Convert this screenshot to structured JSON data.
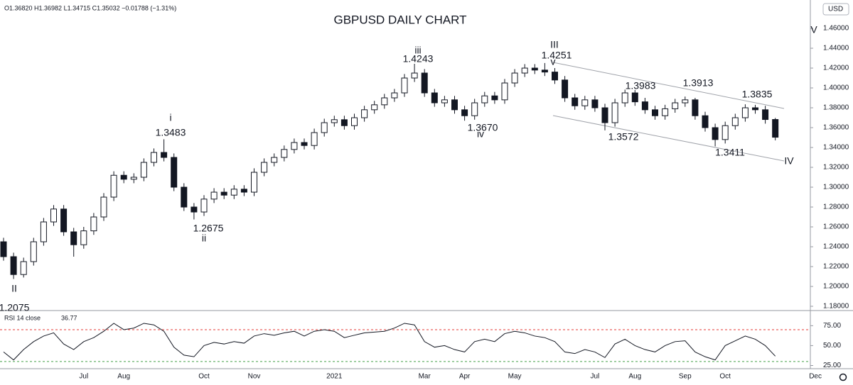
{
  "chart_data": {
    "type": "candlestick",
    "title": "GBPUSD DAILY CHART",
    "header": "O1.36820 H1.36982 L1.34715 C1.35032 −0.01788 (−1.31%)",
    "currency": "USD",
    "categories": [
      null,
      null,
      null,
      null,
      null,
      null,
      null,
      null,
      "Jul",
      null,
      null,
      null,
      "Aug",
      null,
      null,
      null,
      null,
      null,
      null,
      null,
      "Oct",
      null,
      null,
      null,
      null,
      "Nov",
      null,
      null,
      null,
      null,
      null,
      null,
      null,
      "2021",
      null,
      null,
      null,
      null,
      null,
      null,
      null,
      null,
      "Mar",
      null,
      null,
      null,
      "Apr",
      null,
      null,
      null,
      null,
      "May",
      null,
      null,
      null,
      null,
      null,
      null,
      null,
      "Jul",
      null,
      null,
      null,
      "Aug",
      null,
      null,
      null,
      null,
      "Sep",
      null,
      null,
      null,
      "Oct",
      null,
      null,
      null,
      null,
      null,
      null,
      null,
      null,
      "Dec"
    ],
    "color": "#131722",
    "open": [
      1.245,
      1.23,
      1.212,
      1.225,
      1.245,
      1.265,
      1.278,
      1.255,
      1.242,
      1.256,
      1.27,
      1.29,
      1.312,
      1.308,
      1.31,
      1.325,
      1.335,
      1.33,
      1.3,
      1.28,
      1.275,
      1.288,
      1.295,
      1.292,
      1.298,
      1.295,
      1.315,
      1.325,
      1.33,
      1.338,
      1.345,
      1.342,
      1.355,
      1.365,
      1.368,
      1.362,
      1.37,
      1.378,
      1.383,
      1.39,
      1.395,
      1.41,
      1.415,
      1.395,
      1.385,
      1.388,
      1.378,
      1.372,
      1.385,
      1.392,
      1.388,
      1.405,
      1.415,
      1.42,
      1.418,
      1.416,
      1.408,
      1.39,
      1.382,
      1.388,
      1.38,
      1.365,
      1.385,
      1.395,
      1.386,
      1.378,
      1.372,
      1.379,
      1.385,
      1.388,
      1.372,
      1.36,
      1.348,
      1.362,
      1.37,
      1.38,
      1.378,
      1.3682,
      null,
      null,
      null,
      null
    ],
    "high": [
      1.249,
      1.234,
      1.229,
      1.249,
      1.269,
      1.282,
      1.282,
      1.259,
      1.26,
      1.274,
      1.294,
      1.316,
      1.316,
      1.314,
      1.329,
      1.339,
      1.3483,
      1.334,
      1.304,
      1.284,
      1.292,
      1.299,
      1.299,
      1.302,
      1.302,
      1.319,
      1.329,
      1.334,
      1.342,
      1.349,
      1.349,
      1.359,
      1.369,
      1.372,
      1.372,
      1.374,
      1.382,
      1.387,
      1.394,
      1.399,
      1.414,
      1.4243,
      1.419,
      1.399,
      1.392,
      1.392,
      1.382,
      1.389,
      1.396,
      1.396,
      1.409,
      1.419,
      1.424,
      1.424,
      1.4251,
      1.42,
      1.412,
      1.394,
      1.392,
      1.392,
      1.384,
      1.389,
      1.3983,
      1.398,
      1.39,
      1.382,
      1.383,
      1.389,
      1.3913,
      1.39,
      1.376,
      1.364,
      1.366,
      1.374,
      1.3835,
      1.383,
      1.382,
      1.3698,
      null,
      null,
      null,
      null
    ],
    "low": [
      1.226,
      1.2075,
      1.209,
      1.221,
      1.241,
      1.261,
      1.251,
      1.23,
      1.238,
      1.252,
      1.266,
      1.286,
      1.304,
      1.304,
      1.306,
      1.321,
      1.326,
      1.296,
      1.276,
      1.2675,
      1.271,
      1.284,
      1.288,
      1.288,
      1.291,
      1.291,
      1.311,
      1.321,
      1.326,
      1.334,
      1.338,
      1.338,
      1.351,
      1.361,
      1.358,
      1.358,
      1.366,
      1.374,
      1.379,
      1.386,
      1.391,
      1.406,
      1.391,
      1.381,
      1.381,
      1.374,
      1.367,
      1.368,
      1.381,
      1.384,
      1.384,
      1.401,
      1.411,
      1.414,
      1.412,
      1.404,
      1.386,
      1.378,
      1.378,
      1.376,
      1.3572,
      1.361,
      1.381,
      1.382,
      1.374,
      1.368,
      1.368,
      1.375,
      1.381,
      1.368,
      1.356,
      1.3411,
      1.344,
      1.358,
      1.366,
      1.374,
      1.364,
      1.34715,
      null,
      null,
      null,
      null
    ],
    "close": [
      1.23,
      1.212,
      1.225,
      1.245,
      1.265,
      1.278,
      1.255,
      1.242,
      1.256,
      1.27,
      1.29,
      1.312,
      1.308,
      1.31,
      1.325,
      1.335,
      1.33,
      1.3,
      1.28,
      1.275,
      1.288,
      1.295,
      1.292,
      1.298,
      1.295,
      1.315,
      1.325,
      1.33,
      1.338,
      1.345,
      1.342,
      1.355,
      1.365,
      1.368,
      1.362,
      1.37,
      1.378,
      1.383,
      1.39,
      1.395,
      1.41,
      1.415,
      1.395,
      1.385,
      1.388,
      1.378,
      1.372,
      1.385,
      1.392,
      1.388,
      1.405,
      1.415,
      1.42,
      1.418,
      1.416,
      1.408,
      1.39,
      1.382,
      1.388,
      1.38,
      1.365,
      1.385,
      1.395,
      1.386,
      1.378,
      1.372,
      1.379,
      1.385,
      1.388,
      1.372,
      1.36,
      1.348,
      1.362,
      1.37,
      1.38,
      1.378,
      1.3682,
      1.35032,
      null,
      null,
      null,
      null
    ],
    "ylim": [
      1.1757,
      1.4886
    ],
    "yticks": [
      {
        "value": 1.18,
        "label": "1.18000"
      },
      {
        "value": 1.2,
        "label": "1.20000"
      },
      {
        "value": 1.22,
        "label": "1.22000"
      },
      {
        "value": 1.24,
        "label": "1.24000"
      },
      {
        "value": 1.26,
        "label": "1.26000"
      },
      {
        "value": 1.28,
        "label": "1.28000"
      },
      {
        "value": 1.3,
        "label": "1.30000"
      },
      {
        "value": 1.32,
        "label": "1.32000"
      },
      {
        "value": 1.34,
        "label": "1.34000"
      },
      {
        "value": 1.36,
        "label": "1.36000"
      },
      {
        "value": 1.38,
        "label": "1.38000"
      },
      {
        "value": 1.4,
        "label": "1.40000"
      },
      {
        "value": 1.42,
        "label": "1.42000"
      },
      {
        "value": 1.44,
        "label": "1.44000"
      },
      {
        "value": 1.46,
        "label": "1.46000"
      }
    ],
    "annotations": [
      "II",
      "1.2075",
      "i",
      "1.3483",
      "1.2675",
      "ii",
      "iii",
      "1.4243",
      "1.3670",
      "iv",
      "III",
      "1.4251",
      "v",
      "1.3983",
      "1.3913",
      "1.3835",
      "1.3572",
      "1.3411",
      "V",
      "IV"
    ],
    "rsi": {
      "label": "RSI 14 close",
      "last_label": "36.77",
      "color": "#131722",
      "values": [
        42,
        32,
        45,
        55,
        62,
        66,
        52,
        45,
        55,
        60,
        68,
        78,
        70,
        72,
        78,
        76,
        68,
        48,
        38,
        36,
        50,
        54,
        52,
        55,
        53,
        62,
        65,
        63,
        66,
        68,
        62,
        68,
        70,
        68,
        60,
        63,
        66,
        67,
        68,
        72,
        78,
        76,
        55,
        48,
        50,
        45,
        42,
        55,
        58,
        55,
        65,
        68,
        66,
        62,
        60,
        55,
        42,
        40,
        45,
        42,
        35,
        52,
        58,
        50,
        45,
        42,
        50,
        55,
        56,
        42,
        36,
        32,
        50,
        56,
        62,
        58,
        50,
        36.77,
        null,
        null,
        null,
        null
      ],
      "ylim": [
        21,
        94
      ],
      "yticks": [
        {
          "value": 25,
          "label": "25.00"
        },
        {
          "value": 50,
          "label": "50.00"
        },
        {
          "value": 75,
          "label": "75.00"
        }
      ],
      "levels": [
        {
          "value": 70,
          "color": "#e53935"
        },
        {
          "value": 30,
          "color": "#43a047"
        }
      ]
    }
  }
}
